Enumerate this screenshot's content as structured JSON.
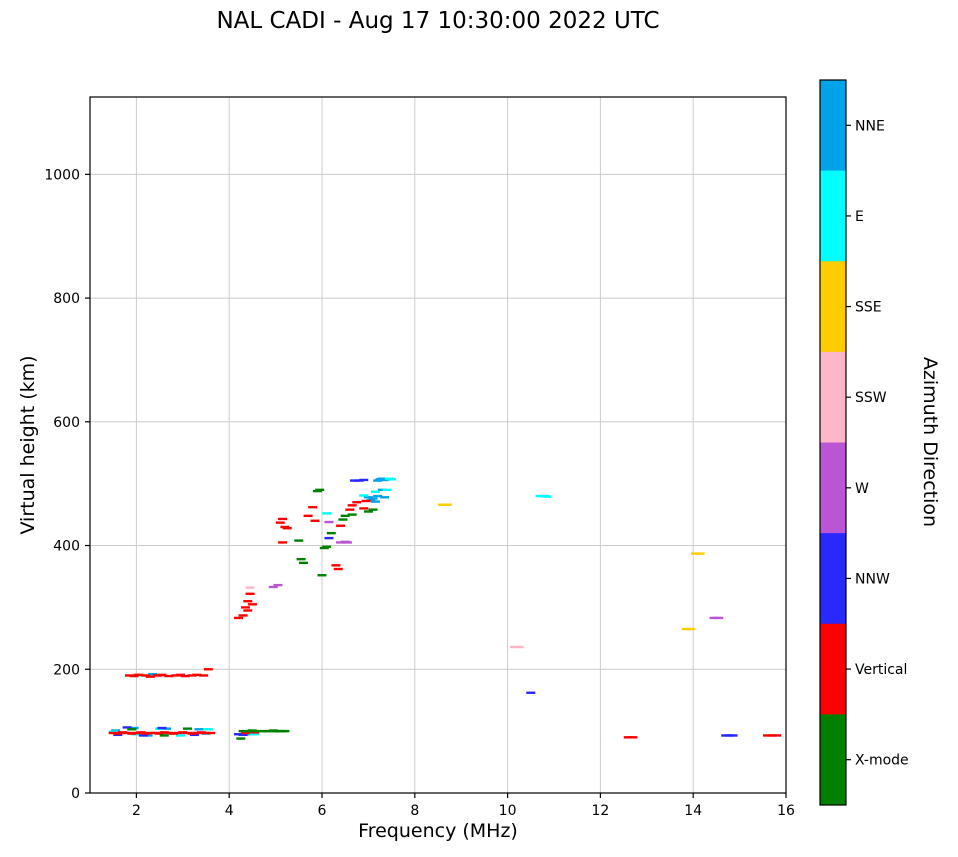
{
  "title": "NAL CADI - Aug 17 10:30:00 2022 UTC",
  "chart_data": {
    "type": "scatter",
    "marker": "horizontal-dash",
    "title": "NAL CADI - Aug 17 10:30:00 2022 UTC",
    "xlabel": "Frequency (MHz)",
    "ylabel": "Virtual height (km)",
    "colorbar_label": "Azimuth Direction",
    "xlim": [
      1,
      16
    ],
    "ylim": [
      0,
      1125
    ],
    "xticks": [
      2,
      4,
      6,
      8,
      10,
      12,
      14,
      16
    ],
    "yticks": [
      0,
      200,
      400,
      600,
      800,
      1000
    ],
    "grid": true,
    "grid_color": "#cccccc",
    "legend_position": "right-colorbar",
    "series": [
      {
        "name": "NNE",
        "color": "#00a2e8",
        "points": [
          [
            1.55,
            101
          ],
          [
            1.95,
            105
          ],
          [
            2.25,
            93
          ],
          [
            2.65,
            104
          ],
          [
            3.35,
            103
          ],
          [
            3.5,
            96
          ],
          [
            4.45,
            95
          ],
          [
            2.35,
            192
          ],
          [
            7.0,
            478
          ],
          [
            7.05,
            473
          ],
          [
            7.1,
            476
          ],
          [
            7.15,
            471
          ],
          [
            7.2,
            480
          ],
          [
            7.2,
            505
          ],
          [
            7.25,
            507
          ],
          [
            7.3,
            508
          ],
          [
            7.3,
            490
          ],
          [
            7.35,
            506
          ],
          [
            7.35,
            478
          ],
          [
            7.4,
            507
          ]
        ]
      },
      {
        "name": "E",
        "color": "#00ffff",
        "points": [
          [
            1.5,
            99
          ],
          [
            2.0,
            95
          ],
          [
            2.5,
            104
          ],
          [
            2.95,
            93
          ],
          [
            3.55,
            103
          ],
          [
            4.5,
            96
          ],
          [
            4.55,
            95
          ],
          [
            2.1,
            190
          ],
          [
            6.1,
            452
          ],
          [
            6.9,
            481
          ],
          [
            7.15,
            487
          ],
          [
            7.4,
            490
          ],
          [
            7.45,
            508
          ],
          [
            7.5,
            507
          ],
          [
            10.7,
            480
          ],
          [
            10.8,
            480
          ],
          [
            10.85,
            479
          ]
        ]
      },
      {
        "name": "SSE",
        "color": "#ffcc00",
        "points": [
          [
            8.6,
            466
          ],
          [
            8.7,
            466
          ],
          [
            13.85,
            265
          ],
          [
            13.95,
            265
          ],
          [
            14.05,
            387
          ],
          [
            14.15,
            387
          ]
        ]
      },
      {
        "name": "SSW",
        "color": "#ffb6c8",
        "points": [
          [
            2.0,
            191
          ],
          [
            2.55,
            189
          ],
          [
            4.45,
            332
          ],
          [
            10.15,
            236
          ],
          [
            10.25,
            236
          ]
        ]
      },
      {
        "name": "W",
        "color": "#ba55d3",
        "points": [
          [
            4.95,
            333
          ],
          [
            5.05,
            336
          ],
          [
            6.15,
            438
          ],
          [
            6.4,
            405
          ],
          [
            6.5,
            406
          ],
          [
            6.55,
            405
          ],
          [
            14.45,
            283
          ],
          [
            14.55,
            283
          ]
        ]
      },
      {
        "name": "NNW",
        "color": "#2929ff",
        "points": [
          [
            1.6,
            94
          ],
          [
            1.8,
            106
          ],
          [
            2.15,
            93
          ],
          [
            2.55,
            105
          ],
          [
            3.25,
            94
          ],
          [
            4.2,
            95
          ],
          [
            4.3,
            94
          ],
          [
            6.15,
            412
          ],
          [
            6.7,
            505
          ],
          [
            6.8,
            505
          ],
          [
            6.9,
            506
          ],
          [
            10.5,
            162
          ],
          [
            14.7,
            93
          ],
          [
            14.78,
            93
          ],
          [
            14.86,
            93
          ]
        ]
      },
      {
        "name": "Vertical",
        "color": "#ff0000",
        "points": [
          [
            1.5,
            97
          ],
          [
            1.6,
            96
          ],
          [
            1.7,
            98
          ],
          [
            1.8,
            97
          ],
          [
            1.9,
            96
          ],
          [
            2.0,
            97
          ],
          [
            2.1,
            98
          ],
          [
            2.2,
            96
          ],
          [
            2.3,
            97
          ],
          [
            2.4,
            97
          ],
          [
            2.5,
            96
          ],
          [
            2.6,
            98
          ],
          [
            2.7,
            97
          ],
          [
            2.8,
            96
          ],
          [
            2.9,
            97
          ],
          [
            3.0,
            98
          ],
          [
            3.1,
            97
          ],
          [
            3.2,
            96
          ],
          [
            3.3,
            97
          ],
          [
            3.4,
            98
          ],
          [
            3.5,
            97
          ],
          [
            3.6,
            97
          ],
          [
            4.35,
            97
          ],
          [
            4.55,
            98
          ],
          [
            3.55,
            200
          ],
          [
            1.85,
            190
          ],
          [
            1.95,
            189
          ],
          [
            2.05,
            191
          ],
          [
            2.2,
            190
          ],
          [
            2.3,
            188
          ],
          [
            2.45,
            190
          ],
          [
            2.55,
            191
          ],
          [
            2.7,
            189
          ],
          [
            2.85,
            190
          ],
          [
            2.95,
            191
          ],
          [
            3.05,
            189
          ],
          [
            3.2,
            190
          ],
          [
            3.3,
            191
          ],
          [
            3.45,
            190
          ],
          [
            4.2,
            283
          ],
          [
            4.3,
            287
          ],
          [
            4.35,
            300
          ],
          [
            4.4,
            310
          ],
          [
            4.4,
            295
          ],
          [
            4.45,
            322
          ],
          [
            4.5,
            305
          ],
          [
            5.1,
            437
          ],
          [
            5.15,
            443
          ],
          [
            5.15,
            405
          ],
          [
            5.2,
            430
          ],
          [
            5.25,
            428
          ],
          [
            5.7,
            448
          ],
          [
            5.8,
            462
          ],
          [
            5.85,
            440
          ],
          [
            6.3,
            368
          ],
          [
            6.35,
            362
          ],
          [
            6.4,
            432
          ],
          [
            6.6,
            458
          ],
          [
            6.65,
            465
          ],
          [
            6.75,
            470
          ],
          [
            6.9,
            460
          ],
          [
            6.95,
            472
          ],
          [
            12.6,
            90
          ],
          [
            12.7,
            90
          ],
          [
            15.6,
            93
          ],
          [
            15.7,
            93
          ],
          [
            15.8,
            93
          ]
        ]
      },
      {
        "name": "X-mode",
        "color": "#008000",
        "points": [
          [
            1.9,
            103
          ],
          [
            2.6,
            93
          ],
          [
            3.1,
            104
          ],
          [
            4.25,
            88
          ],
          [
            4.3,
            100
          ],
          [
            4.4,
            100
          ],
          [
            4.5,
            101
          ],
          [
            4.6,
            100
          ],
          [
            4.7,
            100
          ],
          [
            4.8,
            100
          ],
          [
            4.9,
            100
          ],
          [
            4.95,
            101
          ],
          [
            5.0,
            100
          ],
          [
            5.05,
            100
          ],
          [
            5.1,
            100
          ],
          [
            5.15,
            100
          ],
          [
            5.2,
            100
          ],
          [
            5.5,
            408
          ],
          [
            5.55,
            378
          ],
          [
            5.6,
            372
          ],
          [
            5.9,
            488
          ],
          [
            5.95,
            490
          ],
          [
            6.0,
            352
          ],
          [
            6.05,
            396
          ],
          [
            6.1,
            398
          ],
          [
            6.2,
            420
          ],
          [
            6.45,
            442
          ],
          [
            6.5,
            448
          ],
          [
            6.65,
            450
          ],
          [
            7.0,
            455
          ],
          [
            7.1,
            458
          ]
        ]
      }
    ]
  }
}
